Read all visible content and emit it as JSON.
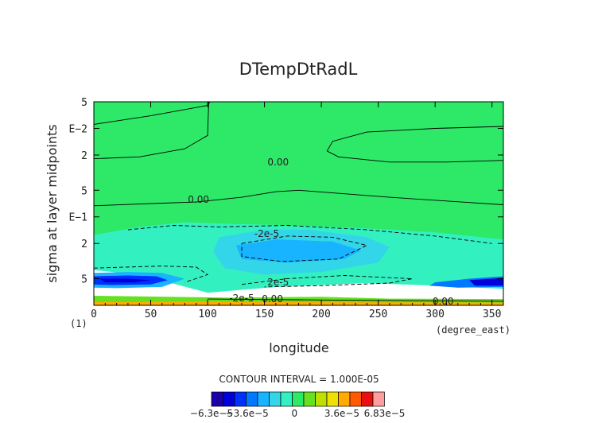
{
  "chart_data": {
    "type": "heatmap",
    "title": "DTempDtRadL",
    "xlabel": "longitude",
    "ylabel": "sigma at layer midpoints",
    "x_unit": "(degree_east)",
    "y_corner_label": "(1)",
    "xlim": [
      0,
      360
    ],
    "ylim": [
      0.005,
      1.0
    ],
    "y_scale": "log",
    "grid": false,
    "x_ticks": [
      "0",
      "50",
      "100",
      "150",
      "200",
      "250",
      "300",
      "350"
    ],
    "x_tick_values": [
      0,
      50,
      100,
      150,
      200,
      250,
      300,
      350
    ],
    "y_ticks": [
      "5",
      "E−2",
      "2",
      "5",
      "E−1",
      "2",
      "5"
    ],
    "y_tick_values": [
      0.005,
      0.01,
      0.02,
      0.05,
      0.1,
      0.2,
      0.5
    ],
    "contour_interval_text": "CONTOUR INTERVAL = 1.000E-05",
    "contour_labels": [
      {
        "text": "0.00",
        "x": 162,
        "y": 0.024
      },
      {
        "text": "0.00",
        "x": 92,
        "y": 0.064
      },
      {
        "text": "-2e-5",
        "x": 152,
        "y": 0.155
      },
      {
        "text": "2e-5",
        "x": 162,
        "y": 0.55
      },
      {
        "text": "-2e-5",
        "x": 130,
        "y": 0.83
      },
      {
        "text": "0.00",
        "x": 157,
        "y": 0.85
      },
      {
        "text": "0.00",
        "x": 307,
        "y": 0.9
      }
    ],
    "levels": [
      {
        "value": -6.3e-05,
        "color": "#1a00a8"
      },
      {
        "value": -5.4e-05,
        "color": "#0000d8"
      },
      {
        "value": -4.5e-05,
        "color": "#0030ff"
      },
      {
        "value": -3.6e-05,
        "color": "#0078ff"
      },
      {
        "value": -2.7e-05,
        "color": "#18b4ff"
      },
      {
        "value": -1.8e-05,
        "color": "#33d6e8"
      },
      {
        "value": -9e-06,
        "color": "#33f0c0"
      },
      {
        "value": 0,
        "color": "#2ee868"
      },
      {
        "value": 9e-06,
        "color": "#66e020"
      },
      {
        "value": 1.8e-05,
        "color": "#bde000"
      },
      {
        "value": 2.7e-05,
        "color": "#f0e000"
      },
      {
        "value": 3.6e-05,
        "color": "#ffaa00"
      },
      {
        "value": 4.5e-05,
        "color": "#ff5a00"
      },
      {
        "value": 5.4e-05,
        "color": "#e81010"
      },
      {
        "value": 6.3e-05,
        "color": "#ff9e9e"
      }
    ],
    "legend_labels": [
      "−6.3e−5",
      "−3.6e−5",
      "0",
      "3.6e−5",
      "6.83e−5"
    ],
    "legend_label_levels": [
      -6.3e-05,
      -3.6e-05,
      0,
      3.6e-05,
      6.83e-05
    ],
    "regions": [
      {
        "name": "neutral-background",
        "level": 0,
        "outline": [
          [
            0,
            0.005
          ],
          [
            360,
            0.005
          ],
          [
            360,
            0.2
          ],
          [
            0,
            0.2
          ]
        ]
      },
      {
        "name": "cooling-band-upper",
        "level": -9e-06,
        "outline": [
          [
            0,
            0.16
          ],
          [
            40,
            0.13
          ],
          [
            80,
            0.115
          ],
          [
            120,
            0.12
          ],
          [
            180,
            0.125
          ],
          [
            240,
            0.135
          ],
          [
            300,
            0.15
          ],
          [
            360,
            0.18
          ],
          [
            360,
            0.65
          ],
          [
            300,
            0.6
          ],
          [
            240,
            0.56
          ],
          [
            160,
            0.62
          ],
          [
            100,
            0.72
          ],
          [
            40,
            0.45
          ],
          [
            0,
            0.4
          ]
        ]
      },
      {
        "name": "cooling-core-center",
        "level": -1.8e-05,
        "outline": [
          [
            110,
            0.17
          ],
          [
            150,
            0.14
          ],
          [
            190,
            0.14
          ],
          [
            240,
            0.17
          ],
          [
            260,
            0.22
          ],
          [
            250,
            0.33
          ],
          [
            200,
            0.42
          ],
          [
            150,
            0.45
          ],
          [
            115,
            0.38
          ],
          [
            105,
            0.25
          ]
        ]
      },
      {
        "name": "cooling-core-center-deep",
        "level": -2.7e-05,
        "outline": [
          [
            125,
            0.21
          ],
          [
            160,
            0.18
          ],
          [
            210,
            0.19
          ],
          [
            235,
            0.24
          ],
          [
            220,
            0.3
          ],
          [
            170,
            0.33
          ],
          [
            130,
            0.3
          ]
        ]
      },
      {
        "name": "cooling-low-west",
        "level": -2.7e-05,
        "outline": [
          [
            0,
            0.43
          ],
          [
            30,
            0.42
          ],
          [
            60,
            0.43
          ],
          [
            80,
            0.5
          ],
          [
            60,
            0.62
          ],
          [
            20,
            0.64
          ],
          [
            0,
            0.63
          ]
        ]
      },
      {
        "name": "cooling-low-west-strong",
        "level": -4.5e-05,
        "outline": [
          [
            0,
            0.47
          ],
          [
            30,
            0.46
          ],
          [
            55,
            0.47
          ],
          [
            65,
            0.52
          ],
          [
            50,
            0.58
          ],
          [
            15,
            0.59
          ],
          [
            0,
            0.58
          ]
        ]
      },
      {
        "name": "cooling-low-west-core",
        "level": -5.4e-05,
        "outline": [
          [
            5,
            0.5
          ],
          [
            30,
            0.5
          ],
          [
            50,
            0.52
          ],
          [
            35,
            0.55
          ],
          [
            10,
            0.55
          ]
        ]
      },
      {
        "name": "cooling-low-east",
        "level": -3.6e-05,
        "outline": [
          [
            300,
            0.55
          ],
          [
            330,
            0.5
          ],
          [
            360,
            0.47
          ],
          [
            360,
            0.62
          ],
          [
            320,
            0.63
          ],
          [
            295,
            0.6
          ]
        ]
      },
      {
        "name": "cooling-low-east-core",
        "level": -5.4e-05,
        "outline": [
          [
            330,
            0.52
          ],
          [
            360,
            0.49
          ],
          [
            360,
            0.6
          ],
          [
            335,
            0.6
          ]
        ]
      },
      {
        "name": "surface-warm-strip",
        "level": 9e-06,
        "outline": [
          [
            0,
            0.78
          ],
          [
            120,
            0.82
          ],
          [
            200,
            0.8
          ],
          [
            260,
            0.84
          ],
          [
            360,
            0.85
          ],
          [
            360,
            0.95
          ],
          [
            0,
            0.95
          ]
        ]
      },
      {
        "name": "surface-hot-strip",
        "level": 3.6e-05,
        "outline": [
          [
            0,
            0.92
          ],
          [
            100,
            0.9
          ],
          [
            180,
            0.92
          ],
          [
            360,
            0.93
          ],
          [
            360,
            1.0
          ],
          [
            0,
            1.0
          ]
        ]
      }
    ],
    "contour_lines": [
      {
        "name": "zero-top-left",
        "style": "solid",
        "points": [
          [
            0,
            0.009
          ],
          [
            50,
            0.0072
          ],
          [
            100,
            0.0055
          ],
          [
            102,
            0.005
          ]
        ]
      },
      {
        "name": "zero-left",
        "style": "solid",
        "points": [
          [
            0,
            0.022
          ],
          [
            40,
            0.021
          ],
          [
            80,
            0.017
          ],
          [
            100,
            0.012
          ],
          [
            101,
            0.005
          ]
        ]
      },
      {
        "name": "zero-upper-right",
        "style": "solid",
        "points": [
          [
            360,
            0.0095
          ],
          [
            300,
            0.01
          ],
          [
            240,
            0.011
          ],
          [
            210,
            0.014
          ],
          [
            205,
            0.018
          ],
          [
            215,
            0.021
          ],
          [
            260,
            0.024
          ],
          [
            310,
            0.024
          ],
          [
            360,
            0.023
          ]
        ]
      },
      {
        "name": "zero-mid",
        "style": "solid",
        "points": [
          [
            0,
            0.075
          ],
          [
            60,
            0.07
          ],
          [
            90,
            0.068
          ],
          [
            130,
            0.06
          ],
          [
            160,
            0.052
          ],
          [
            180,
            0.05
          ],
          [
            260,
            0.06
          ],
          [
            360,
            0.073
          ]
        ]
      },
      {
        "name": "neg-mid-outer",
        "style": "dashed",
        "points": [
          [
            30,
            0.14
          ],
          [
            70,
            0.125
          ],
          [
            110,
            0.13
          ],
          [
            170,
            0.125
          ],
          [
            240,
            0.14
          ],
          [
            300,
            0.165
          ],
          [
            350,
            0.2
          ]
        ]
      },
      {
        "name": "neg-mid-inner",
        "style": "dashed",
        "points": [
          [
            130,
            0.2
          ],
          [
            170,
            0.165
          ],
          [
            210,
            0.17
          ],
          [
            240,
            0.21
          ],
          [
            215,
            0.3
          ],
          [
            165,
            0.32
          ],
          [
            130,
            0.28
          ],
          [
            130,
            0.2
          ]
        ]
      },
      {
        "name": "neg-lower",
        "style": "dashed",
        "points": [
          [
            0,
            0.38
          ],
          [
            60,
            0.36
          ],
          [
            90,
            0.37
          ],
          [
            100,
            0.45
          ],
          [
            80,
            0.55
          ]
        ]
      },
      {
        "name": "neg-lower-center",
        "style": "dashed",
        "points": [
          [
            130,
            0.58
          ],
          [
            170,
            0.5
          ],
          [
            220,
            0.46
          ],
          [
            280,
            0.5
          ],
          [
            260,
            0.56
          ],
          [
            200,
            0.6
          ],
          [
            150,
            0.62
          ]
        ]
      },
      {
        "name": "zero-bottom",
        "style": "solid",
        "points": [
          [
            100,
            0.85
          ],
          [
            150,
            0.86
          ],
          [
            200,
            0.87
          ],
          [
            300,
            0.89
          ],
          [
            360,
            0.9
          ]
        ]
      }
    ]
  }
}
